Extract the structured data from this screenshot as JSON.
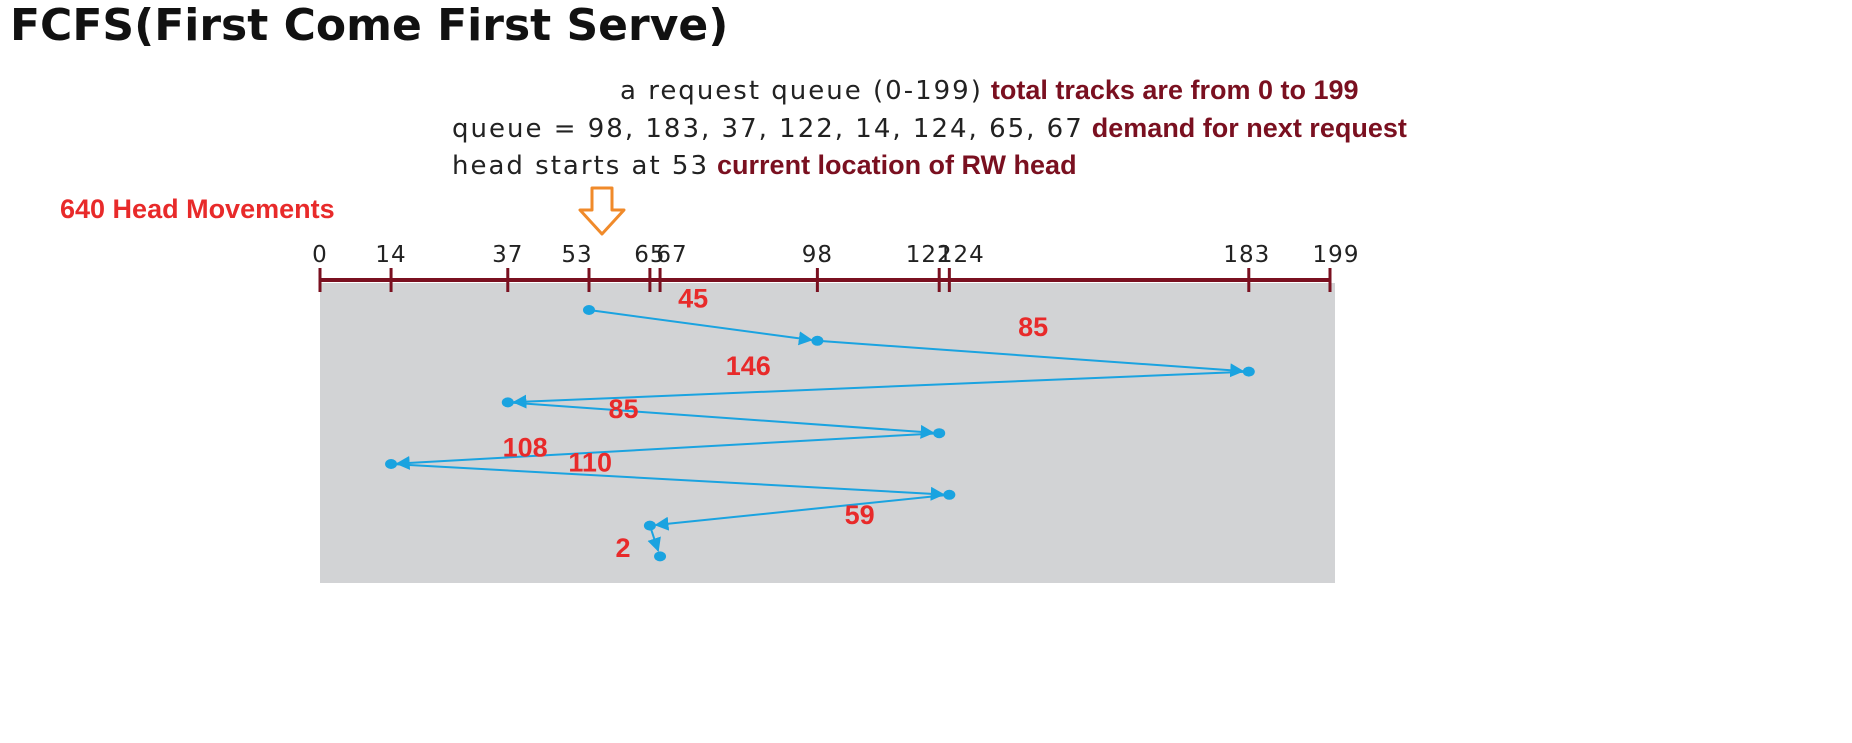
{
  "title": "FCFS(First Come First Serve)",
  "header": {
    "line1": {
      "text": "a request queue (0-199)",
      "note": "total tracks are from 0 to 199"
    },
    "line2": {
      "text": "queue = 98, 183, 37, 122, 14, 124, 65, 67",
      "note": "demand for next request"
    },
    "line3": {
      "text": "head starts at 53",
      "note": "current location of RW head"
    }
  },
  "movements_label": "640 Head Movements",
  "colors": {
    "axis": "#7a1020",
    "panel": "#d2d3d5",
    "path": "#1aa3e0",
    "arrow": "#f08a2a",
    "distance_label": "#e82a2a",
    "note": "#7a1020"
  },
  "chart_data": {
    "type": "diagram",
    "track_range": [
      0,
      199
    ],
    "head_start": 53,
    "axis_ticks": [
      "0",
      "14",
      "37",
      "53",
      "65",
      "67",
      "98",
      "122",
      "124",
      "183",
      "199"
    ],
    "sequence": [
      53,
      98,
      183,
      37,
      122,
      14,
      124,
      65,
      67
    ],
    "distances": [
      "45",
      "85",
      "146",
      "85",
      "108",
      "110",
      "59",
      "2"
    ],
    "total_movements": 640
  }
}
